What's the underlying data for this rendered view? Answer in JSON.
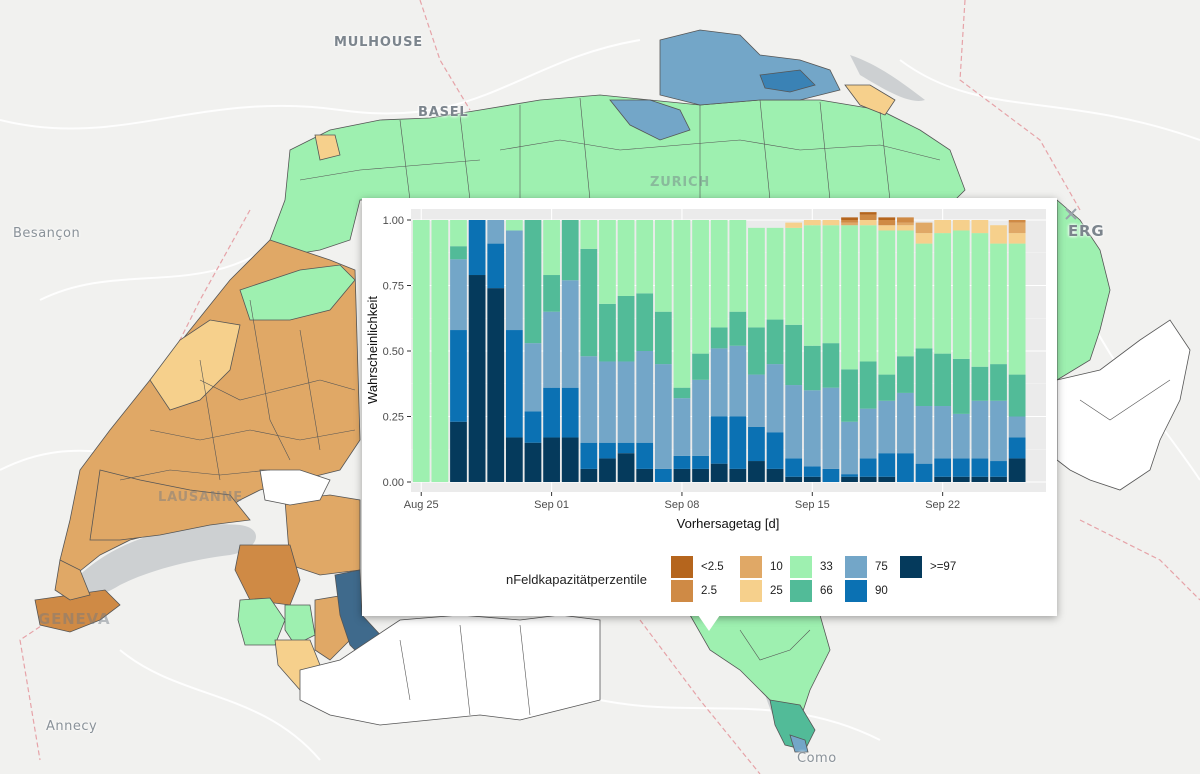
{
  "map": {
    "city_labels": [
      {
        "id": "mulhouse",
        "text": "MULHOUSE"
      },
      {
        "id": "basel",
        "text": "BASEL"
      },
      {
        "id": "zurich",
        "text": "ZURICH"
      },
      {
        "id": "besancon",
        "text": "Besançon"
      },
      {
        "id": "lausanne",
        "text": "LAUSANNE"
      },
      {
        "id": "geneva",
        "text": "GENEVA"
      },
      {
        "id": "annecy",
        "text": "Annecy"
      },
      {
        "id": "como",
        "text": "Como"
      },
      {
        "id": "berg",
        "text": "ERG"
      }
    ]
  },
  "popup": {
    "chart_data": {
      "type": "bar",
      "stacked": true,
      "xlabel": "Vorhersagetag [d]",
      "ylabel": "Wahrscheinlichkeit",
      "ylim": [
        0,
        1
      ],
      "yticks": [
        "0.00",
        "0.25",
        "0.50",
        "0.75",
        "1.00"
      ],
      "xticks": [
        {
          "label": "Aug 25",
          "day": 1
        },
        {
          "label": "Sep 01",
          "day": 8
        },
        {
          "label": "Sep 08",
          "day": 15
        },
        {
          "label": "Sep 15",
          "day": 22
        },
        {
          "label": "Sep 22",
          "day": 29
        }
      ],
      "days": 33,
      "class_order": [
        ">=97",
        "90",
        "75",
        "66",
        "33",
        "25",
        "10",
        "2.5",
        "<2.5"
      ],
      "colors": {
        "<2.5": "#b5651d",
        "2.5": "#cf8a45",
        "10": "#e0a866",
        "25": "#f6d08c",
        "33": "#9ef0b0",
        "66": "#52bb98",
        "75": "#73a6c8",
        "90": "#0b71b3",
        ">=97": "#053a5c"
      },
      "series": [
        {
          "name": ">=97",
          "values": [
            0,
            0,
            0.23,
            0.79,
            0.74,
            0.17,
            0.15,
            0.17,
            0.17,
            0.05,
            0.09,
            0.11,
            0.05,
            0,
            0.05,
            0.05,
            0.07,
            0.05,
            0.08,
            0.05,
            0.02,
            0.02,
            0,
            0.02,
            0.02,
            0.02,
            0,
            0,
            0.02,
            0.02,
            0.02,
            0.02,
            0.09
          ]
        },
        {
          "name": "90",
          "values": [
            0,
            0,
            0.35,
            0.21,
            0.17,
            0.41,
            0.12,
            0.19,
            0.19,
            0.1,
            0.06,
            0.04,
            0.1,
            0.05,
            0.05,
            0.05,
            0.18,
            0.2,
            0.13,
            0.14,
            0.07,
            0.04,
            0.05,
            0.01,
            0.07,
            0.09,
            0.11,
            0.07,
            0.07,
            0.07,
            0.07,
            0.06,
            0.08
          ]
        },
        {
          "name": "75",
          "values": [
            0,
            0,
            0.27,
            0,
            0.09,
            0.38,
            0.26,
            0.29,
            0.41,
            0.33,
            0.31,
            0.31,
            0.35,
            0.4,
            0.22,
            0.29,
            0.26,
            0.27,
            0.2,
            0.26,
            0.28,
            0.29,
            0.31,
            0.2,
            0.19,
            0.2,
            0.23,
            0.22,
            0.2,
            0.17,
            0.22,
            0.23,
            0.08
          ]
        },
        {
          "name": "66",
          "values": [
            0,
            0,
            0.05,
            0,
            0,
            0,
            0.47,
            0.14,
            0.23,
            0.41,
            0.22,
            0.25,
            0.22,
            0.2,
            0.04,
            0.1,
            0.08,
            0.13,
            0.18,
            0.17,
            0.23,
            0.17,
            0.17,
            0.2,
            0.18,
            0.1,
            0.14,
            0.22,
            0.2,
            0.21,
            0.13,
            0.14,
            0.16
          ]
        },
        {
          "name": "33",
          "values": [
            1,
            1,
            0.1,
            0,
            0,
            0.04,
            0,
            0.21,
            0,
            0.11,
            0.32,
            0.29,
            0.28,
            0.35,
            0.64,
            0.51,
            0.41,
            0.35,
            0.38,
            0.35,
            0.37,
            0.46,
            0.45,
            0.55,
            0.52,
            0.55,
            0.48,
            0.4,
            0.46,
            0.49,
            0.51,
            0.46,
            0.5
          ]
        },
        {
          "name": "25",
          "values": [
            0,
            0,
            0,
            0,
            0,
            0,
            0,
            0,
            0,
            0,
            0,
            0,
            0,
            0,
            0,
            0,
            0,
            0,
            0,
            0,
            0.02,
            0.02,
            0.02,
            0,
            0.02,
            0.02,
            0.02,
            0.04,
            0.05,
            0.04,
            0.05,
            0.07,
            0.04
          ]
        },
        {
          "name": "10",
          "values": [
            0,
            0,
            0,
            0,
            0,
            0,
            0,
            0,
            0,
            0,
            0,
            0,
            0,
            0,
            0,
            0,
            0,
            0,
            0,
            0,
            0,
            0,
            0,
            0.01,
            0,
            0,
            0.01,
            0.04,
            0,
            0,
            0,
            0,
            0.04
          ]
        },
        {
          "name": "2.5",
          "values": [
            0,
            0,
            0,
            0,
            0,
            0,
            0,
            0,
            0,
            0,
            0,
            0,
            0,
            0,
            0,
            0,
            0,
            0,
            0,
            0,
            0,
            0,
            0,
            0.01,
            0.02,
            0.02,
            0.02,
            0,
            0,
            0,
            0,
            0,
            0.01
          ]
        },
        {
          "name": "<2.5",
          "values": [
            0,
            0,
            0,
            0,
            0,
            0,
            0,
            0,
            0,
            0,
            0,
            0,
            0,
            0,
            0,
            0,
            0,
            0,
            0,
            0,
            0,
            0,
            0,
            0.01,
            0.01,
            0.01,
            0,
            0,
            0,
            0,
            0,
            0,
            0
          ]
        }
      ]
    },
    "legend": {
      "title": "nFeldkapazitätperzentile",
      "items": [
        {
          "key": "<2.5",
          "label": "<2.5"
        },
        {
          "key": "2.5",
          "label": "2.5"
        },
        {
          "key": "10",
          "label": "10"
        },
        {
          "key": "25",
          "label": "25"
        },
        {
          "key": "33",
          "label": "33"
        },
        {
          "key": "66",
          "label": "66"
        },
        {
          "key": "75",
          "label": "75"
        },
        {
          "key": "90",
          "label": "90"
        },
        {
          "key": ">=97",
          "label": ">=97"
        }
      ]
    }
  }
}
